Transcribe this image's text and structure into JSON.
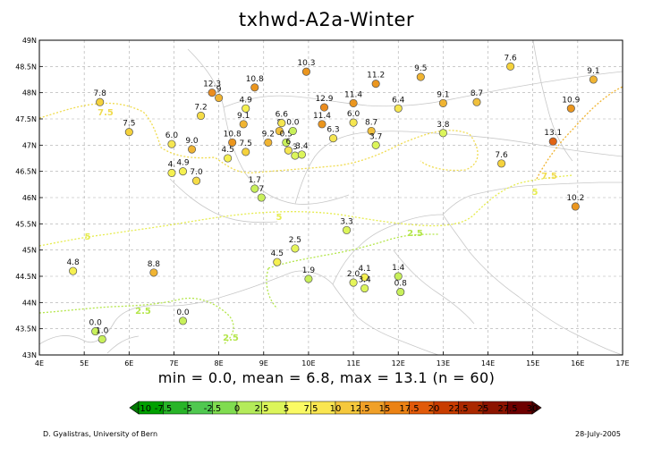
{
  "title": "txhwd-A2a-Winter",
  "stats": "min = 0.0, mean = 6.8, max = 13.1 (n = 60)",
  "footer": {
    "author": "D. Gyalistras, University of Bern",
    "date": "28-July-2005"
  },
  "axes": {
    "lon_ticks": [
      "4E",
      "5E",
      "6E",
      "7E",
      "8E",
      "9E",
      "10E",
      "11E",
      "12E",
      "13E",
      "14E",
      "15E",
      "16E",
      "17E"
    ],
    "lat_ticks": [
      "43N",
      "43.5N",
      "44N",
      "44.5N",
      "45N",
      "45.5N",
      "46N",
      "46.5N",
      "47N",
      "47.5N",
      "48N",
      "48.5N",
      "49N"
    ],
    "lon_range": [
      4,
      17
    ],
    "lat_range": [
      43,
      49
    ]
  },
  "colorbar": {
    "labels": [
      "-10",
      "-7.5",
      "-5",
      "-2.5",
      "0",
      "2.5",
      "5",
      "7.5",
      "10",
      "12.5",
      "15",
      "17.5",
      "20",
      "22.5",
      "25",
      "27.5",
      "30"
    ],
    "colors": [
      "#00a000",
      "#28b428",
      "#50c850",
      "#80dc50",
      "#b4eb5a",
      "#dcf55a",
      "#fafa64",
      "#fae650",
      "#f5c83c",
      "#f0a028",
      "#eb8214",
      "#e15a0a",
      "#c83c00",
      "#aa2800",
      "#8c1400",
      "#6e0000"
    ],
    "low_end": "#007800",
    "high_end": "#500000"
  },
  "contour_labels": [
    {
      "text": "7.5",
      "color": "#f0dc50"
    },
    {
      "text": "5",
      "color": "#e6ec50"
    },
    {
      "text": "5",
      "color": "#e6ec50"
    },
    {
      "text": "5",
      "color": "#e6ec50"
    },
    {
      "text": "2.5",
      "color": "#b4e64b"
    },
    {
      "text": "2.5",
      "color": "#b4e64b"
    },
    {
      "text": "2.5",
      "color": "#b4e64b"
    },
    {
      "text": "7.5",
      "color": "#f0dc50"
    }
  ],
  "chart_data": {
    "type": "scatter",
    "title": "txhwd-A2a-Winter",
    "x_unit": "longitude (deg E)",
    "y_unit": "latitude (deg N)",
    "xlim": [
      4,
      17
    ],
    "ylim": [
      43,
      49
    ],
    "grid": true,
    "points": [
      {
        "lon": 4.75,
        "lat": 44.6,
        "value": "4.8",
        "color": "#f5f050"
      },
      {
        "lon": 5.25,
        "lat": 43.45,
        "value": "0.0",
        "color": "#c8f05a"
      },
      {
        "lon": 5.4,
        "lat": 43.3,
        "value": "1.0",
        "color": "#c8f05a"
      },
      {
        "lon": 5.35,
        "lat": 47.82,
        "value": "7.8",
        "color": "#f5d23c"
      },
      {
        "lon": 6.0,
        "lat": 47.25,
        "value": "7.5",
        "color": "#f5d23c"
      },
      {
        "lon": 6.55,
        "lat": 44.57,
        "value": "8.8",
        "color": "#f0b432"
      },
      {
        "lon": 6.95,
        "lat": 47.02,
        "value": "6.0",
        "color": "#f5e650"
      },
      {
        "lon": 6.95,
        "lat": 46.47,
        "value": "4.",
        "color": "#f5f050"
      },
      {
        "lon": 7.2,
        "lat": 46.5,
        "value": "4.9",
        "color": "#f5f050"
      },
      {
        "lon": 7.4,
        "lat": 46.92,
        "value": "9.0",
        "color": "#f0b432"
      },
      {
        "lon": 7.5,
        "lat": 46.32,
        "value": "7.0",
        "color": "#f5dc46"
      },
      {
        "lon": 7.6,
        "lat": 47.56,
        "value": "7.2",
        "color": "#f5dc46"
      },
      {
        "lon": 7.2,
        "lat": 43.65,
        "value": "0.0",
        "color": "#c8f05a"
      },
      {
        "lon": 7.85,
        "lat": 48.0,
        "value": "12.3",
        "color": "#eb8c1e"
      },
      {
        "lon": 8.0,
        "lat": 47.9,
        "value": "9",
        "color": "#f0b432"
      },
      {
        "lon": 8.2,
        "lat": 46.75,
        "value": "4.5",
        "color": "#f5f050"
      },
      {
        "lon": 8.3,
        "lat": 47.05,
        "value": "10.8",
        "color": "#eb961e"
      },
      {
        "lon": 8.6,
        "lat": 46.87,
        "value": "7.5",
        "color": "#f5d23c"
      },
      {
        "lon": 8.55,
        "lat": 47.4,
        "value": "9.1",
        "color": "#f0b432"
      },
      {
        "lon": 8.6,
        "lat": 47.7,
        "value": "4.9",
        "color": "#f5f050"
      },
      {
        "lon": 8.8,
        "lat": 48.1,
        "value": "10.8",
        "color": "#eb961e"
      },
      {
        "lon": 8.8,
        "lat": 46.17,
        "value": "1.7",
        "color": "#c8f05a"
      },
      {
        "lon": 8.95,
        "lat": 46.0,
        "value": "7",
        "color": "#c8f05a"
      },
      {
        "lon": 9.1,
        "lat": 47.05,
        "value": "9.2",
        "color": "#f0b432"
      },
      {
        "lon": 9.35,
        "lat": 47.27,
        "value": "8",
        "color": "#f0c03c"
      },
      {
        "lon": 9.4,
        "lat": 47.42,
        "value": "6.6",
        "color": "#f5e650"
      },
      {
        "lon": 9.5,
        "lat": 47.05,
        "value": "0.5",
        "color": "#c8f05a"
      },
      {
        "lon": 9.55,
        "lat": 46.9,
        "value": "6",
        "color": "#f5e650"
      },
      {
        "lon": 9.65,
        "lat": 47.27,
        "value": "0.0",
        "color": "#c8f05a"
      },
      {
        "lon": 9.7,
        "lat": 46.8,
        "value": "3",
        "color": "#dcf55a"
      },
      {
        "lon": 9.85,
        "lat": 46.82,
        "value": "3.4",
        "color": "#dcf55a"
      },
      {
        "lon": 9.3,
        "lat": 44.77,
        "value": "4.5",
        "color": "#f5f050"
      },
      {
        "lon": 9.7,
        "lat": 45.03,
        "value": "2.5",
        "color": "#e6f55a"
      },
      {
        "lon": 9.95,
        "lat": 48.4,
        "value": "10.3",
        "color": "#eb961e"
      },
      {
        "lon": 10.0,
        "lat": 44.45,
        "value": "1.9",
        "color": "#c8f05a"
      },
      {
        "lon": 10.3,
        "lat": 47.4,
        "value": "11.4",
        "color": "#eb961e"
      },
      {
        "lon": 10.35,
        "lat": 47.72,
        "value": "12.9",
        "color": "#eb8c1e"
      },
      {
        "lon": 10.55,
        "lat": 47.13,
        "value": "6.3",
        "color": "#f5e650"
      },
      {
        "lon": 10.85,
        "lat": 45.38,
        "value": "3.3",
        "color": "#dcf55a"
      },
      {
        "lon": 11.0,
        "lat": 47.43,
        "value": "6.0",
        "color": "#f5e650"
      },
      {
        "lon": 11.0,
        "lat": 47.8,
        "value": "11.4",
        "color": "#eb961e"
      },
      {
        "lon": 11.0,
        "lat": 44.38,
        "value": "2.0",
        "color": "#e6f55a"
      },
      {
        "lon": 11.25,
        "lat": 44.48,
        "value": "4.1",
        "color": "#f5f050"
      },
      {
        "lon": 11.25,
        "lat": 44.27,
        "value": "3.4",
        "color": "#dcf55a"
      },
      {
        "lon": 11.4,
        "lat": 47.27,
        "value": "8.7",
        "color": "#f0c03c"
      },
      {
        "lon": 11.5,
        "lat": 47.0,
        "value": "3.7",
        "color": "#dcf55a"
      },
      {
        "lon": 11.5,
        "lat": 48.17,
        "value": "11.2",
        "color": "#eb961e"
      },
      {
        "lon": 12.0,
        "lat": 47.7,
        "value": "6.4",
        "color": "#f5e650"
      },
      {
        "lon": 12.0,
        "lat": 44.5,
        "value": "1.4",
        "color": "#c8f05a"
      },
      {
        "lon": 12.05,
        "lat": 44.2,
        "value": "0.8",
        "color": "#c8f05a"
      },
      {
        "lon": 12.5,
        "lat": 48.3,
        "value": "9.5",
        "color": "#f0b432"
      },
      {
        "lon": 13.0,
        "lat": 47.8,
        "value": "9.1",
        "color": "#f0b432"
      },
      {
        "lon": 13.0,
        "lat": 47.23,
        "value": "3.8",
        "color": "#dcf55a"
      },
      {
        "lon": 13.75,
        "lat": 47.82,
        "value": "8.7",
        "color": "#f0c03c"
      },
      {
        "lon": 14.3,
        "lat": 46.65,
        "value": "7.6",
        "color": "#f5d23c"
      },
      {
        "lon": 14.5,
        "lat": 48.5,
        "value": "7.6",
        "color": "#f5d23c"
      },
      {
        "lon": 15.45,
        "lat": 47.07,
        "value": "13.1",
        "color": "#e16414"
      },
      {
        "lon": 15.85,
        "lat": 47.7,
        "value": "10.9",
        "color": "#eb961e"
      },
      {
        "lon": 15.95,
        "lat": 45.83,
        "value": "10.2",
        "color": "#eb961e"
      },
      {
        "lon": 16.35,
        "lat": 48.25,
        "value": "9.1",
        "color": "#f0b432"
      }
    ]
  }
}
